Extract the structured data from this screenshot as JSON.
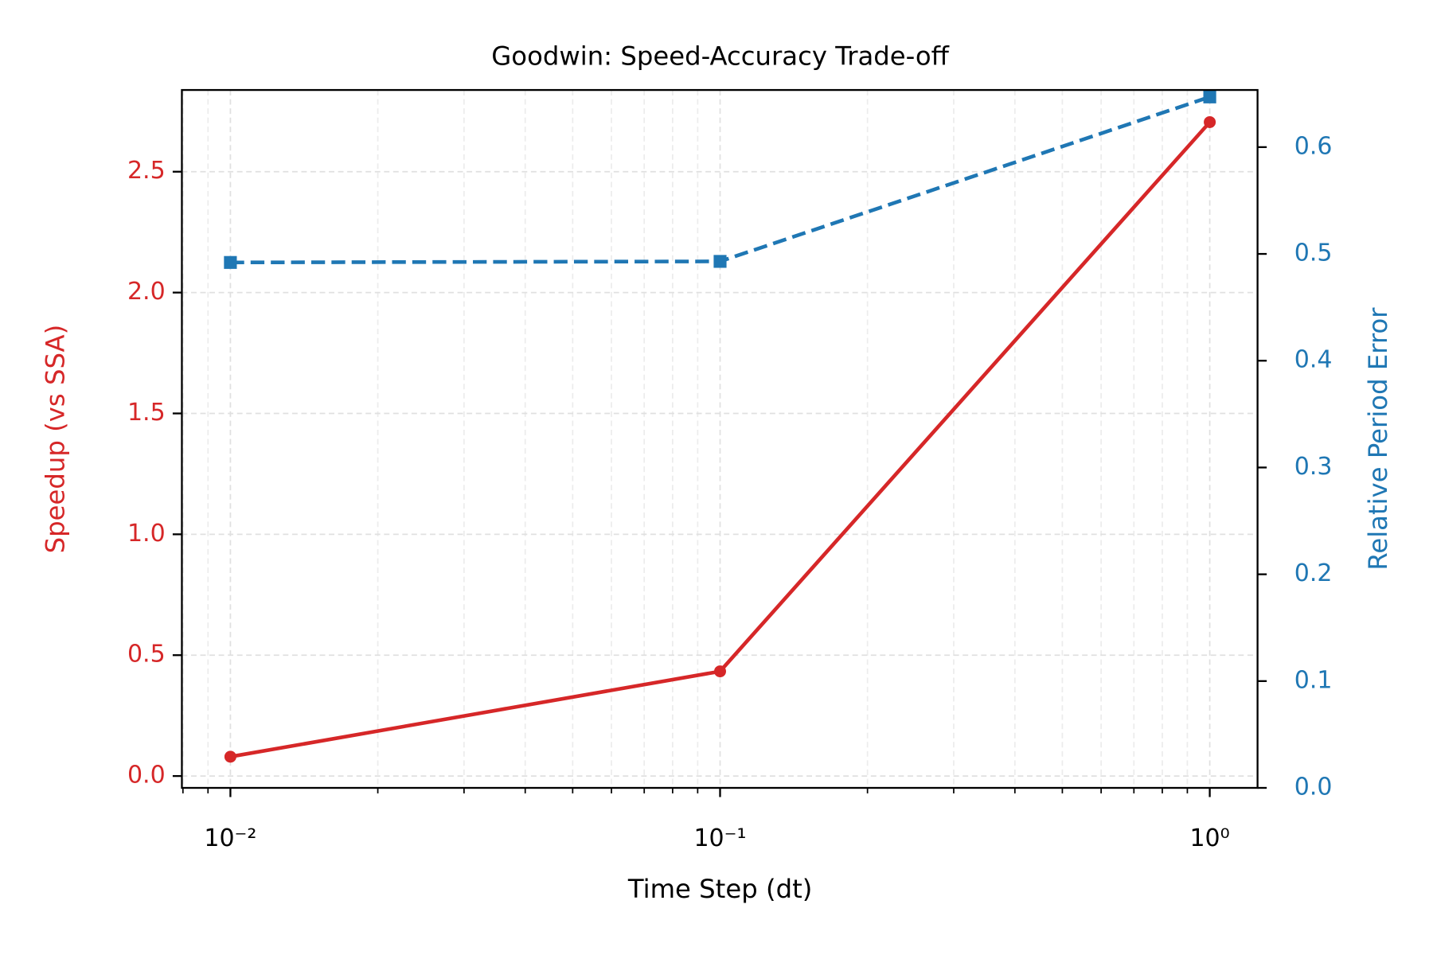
{
  "chart_data": {
    "type": "line",
    "title": "Goodwin: Speed-Accuracy Trade-off",
    "xlabel": "Time Step (dt)",
    "ylabel": "Speedup (vs SSA)",
    "y2label": "Relative Period Error",
    "xscale": "log",
    "x": [
      0.01,
      0.1,
      1
    ],
    "series": [
      {
        "color": "#d62728",
        "marker": "circle",
        "linestyle": "solid",
        "values": [
          0.08,
          0.433,
          2.705
        ]
      },
      {
        "color": "#1f77b4",
        "marker": "square",
        "linestyle": "dashed",
        "axis": "y2",
        "values": [
          0.492,
          0.493,
          0.647
        ]
      }
    ],
    "xlim": [
      0.00796,
      1.252
    ],
    "xticks": [
      {
        "value": 0.01,
        "label": "10⁻²"
      },
      {
        "value": 0.1,
        "label": "10⁻¹"
      },
      {
        "value": 1,
        "label": "10⁰"
      }
    ],
    "xminor_ticks": [
      0.008,
      0.009,
      0.02,
      0.03,
      0.04,
      0.05,
      0.06,
      0.07,
      0.08,
      0.09,
      0.2,
      0.3,
      0.4,
      0.5,
      0.6,
      0.7,
      0.8,
      0.9
    ],
    "ylim": [
      -0.049,
      2.838
    ],
    "yticks": [
      {
        "value": 0,
        "label": "0.0"
      },
      0.5,
      {
        "value": 1,
        "label": "1.0"
      },
      1.5,
      {
        "value": 2,
        "label": "2.0"
      },
      2.5
    ],
    "y2lim": [
      0,
      0.6535
    ],
    "y2ticks": [
      {
        "value": 0,
        "label": "0.0"
      },
      0.1,
      0.2,
      0.3,
      0.4,
      0.5,
      0.6
    ],
    "grid": true,
    "ylabel_color": "#d62728",
    "y2label_color": "#1f77b4"
  }
}
